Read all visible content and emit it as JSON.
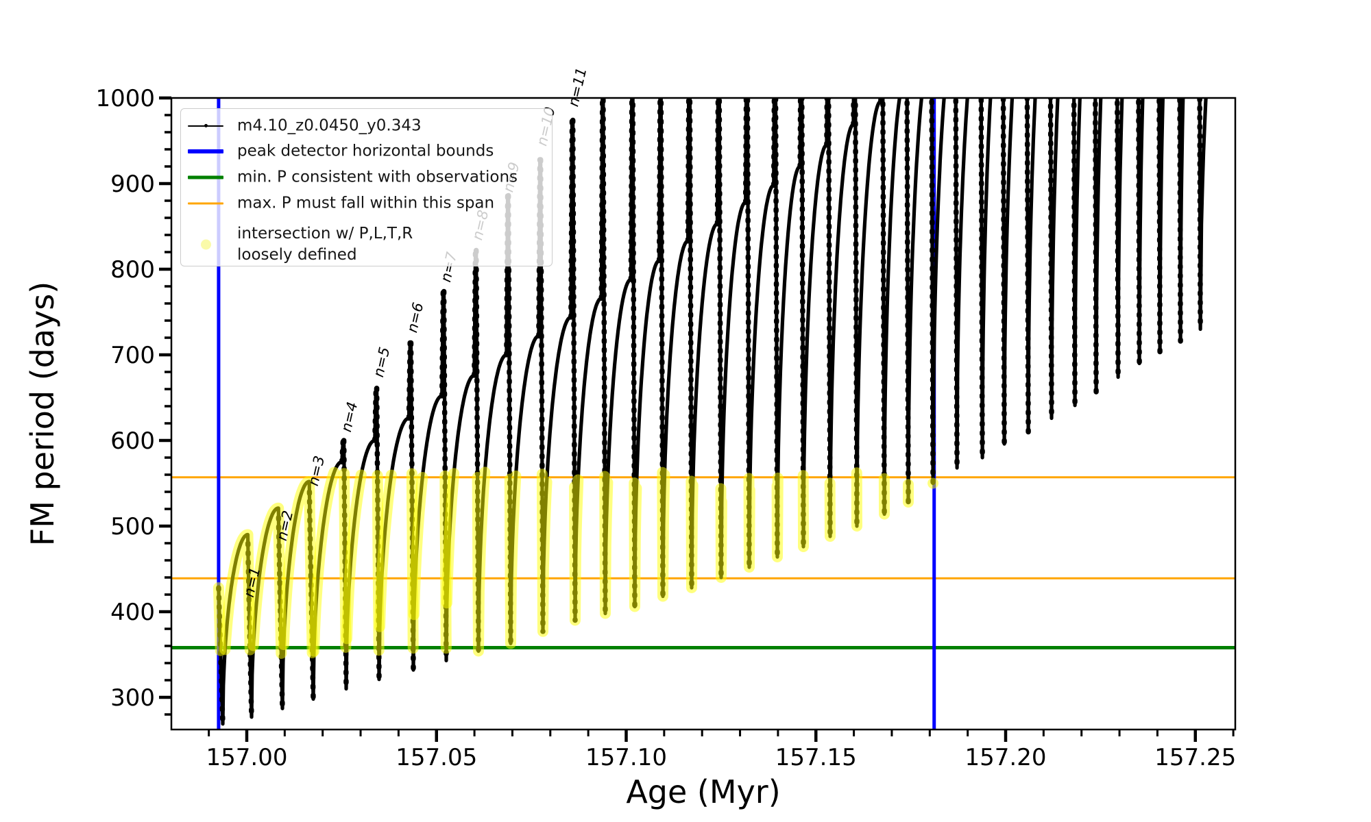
{
  "chart_data": {
    "type": "line",
    "title": "",
    "xlabel": "Age (Myr)",
    "ylabel": "FM period (days)",
    "xlim": [
      156.98013,
      157.26052
    ],
    "ylim": [
      262.4,
      1000
    ],
    "xticks": [
      157.0,
      157.05,
      157.1,
      157.15,
      157.2,
      157.25
    ],
    "x_tick_labels": [
      "157.00",
      "157.05",
      "157.10",
      "157.15",
      "157.20",
      "157.25"
    ],
    "x_minor_step": 0.01,
    "yticks": [
      300,
      400,
      500,
      600,
      700,
      800,
      900,
      1000
    ],
    "y_tick_labels": [
      "300",
      "400",
      "500",
      "600",
      "700",
      "800",
      "900",
      "1000"
    ],
    "y_minor_step": 20,
    "grid": false,
    "series_label": "m4.10_z0.0450_y0.343",
    "series_color": "#000000",
    "curve": {
      "description": "Scalloped FM-period track: each cycle starts at a dip, arches up to a rounded peak near the end of the cycle, then a near-vertical spike rises to spike_peak_P and falls to the next dip. Values above 1000 are clipped by the axes.",
      "start_point": {
        "age": 156.99258,
        "P": 428
      },
      "dip_ages": [
        156.99368,
        157.00126,
        157.0094,
        157.01753,
        157.0262,
        157.03487,
        157.0439,
        157.05257,
        157.06107,
        157.06956,
        157.07805,
        157.08654,
        157.09449,
        157.10226,
        157.10967,
        157.11726,
        157.12503,
        157.13243,
        157.13984,
        157.14671,
        157.15375,
        157.1608,
        157.16803,
        157.17435,
        157.18086,
        157.18718,
        157.19387,
        157.19965,
        157.20597,
        157.21211,
        157.21826,
        157.22386,
        157.22964,
        157.23524,
        157.24066,
        157.24608,
        157.25132
      ],
      "dip_P": [
        269,
        277,
        287,
        298,
        310,
        321,
        332,
        343,
        354,
        363,
        377,
        390,
        398,
        406,
        418,
        428,
        440,
        452,
        464,
        476,
        488,
        500,
        514,
        528,
        550,
        568,
        580,
        596,
        610,
        626,
        641,
        656,
        674,
        690,
        703,
        716,
        730
      ],
      "arch_peak_P": [
        490,
        521,
        552,
        575,
        600,
        626,
        652,
        676,
        700,
        722,
        744,
        766,
        788,
        810,
        833,
        853,
        878,
        898,
        920,
        945,
        969,
        996,
        1022,
        1046,
        1070,
        1090,
        1110,
        1130,
        1150,
        1170,
        1190,
        1210,
        1230,
        1250,
        1270,
        1290
      ],
      "spike_peak_P": [
        420,
        470,
        540,
        600,
        661,
        714,
        774,
        822,
        886,
        928,
        974,
        998,
        1025,
        1038,
        1050,
        1062,
        1074,
        1086,
        1098,
        1110,
        1122,
        1134,
        1146,
        1158,
        1170,
        1182,
        1194,
        1206,
        1218,
        1230,
        1242,
        1254,
        1266,
        1278,
        1290,
        1302
      ],
      "end_point": {
        "age": 157.2625,
        "P": 1310
      }
    },
    "vlines": {
      "label": "peak detector horizontal bounds",
      "color": "#0000ff",
      "ages": [
        156.99258,
        157.18116
      ]
    },
    "hline_min": {
      "label": "min. P consistent with observations",
      "color": "#008000",
      "P": 358
    },
    "hlines_span": {
      "label": "max. P must fall within this span",
      "color": "#ffa500",
      "P": [
        439,
        557
      ]
    },
    "highlight": {
      "label": "intersection w/ P,L,T,R loosely defined",
      "color": "#ffff00",
      "P_range": [
        358,
        557
      ],
      "age_range": [
        156.99258,
        157.18116
      ]
    },
    "annotations": [
      {
        "label": "n=1",
        "age": 157.0017,
        "P": 416,
        "color": "#000000"
      },
      {
        "label": "n=2",
        "age": 157.01037,
        "P": 482,
        "color": "#000000"
      },
      {
        "label": "n=3",
        "age": 157.01869,
        "P": 546,
        "color": "#000000"
      },
      {
        "label": "n=4",
        "age": 157.02737,
        "P": 609,
        "color": "#000000"
      },
      {
        "label": "n=5",
        "age": 157.03587,
        "P": 673,
        "color": "#000000"
      },
      {
        "label": "n=6",
        "age": 157.04473,
        "P": 725,
        "color": "#000000"
      },
      {
        "label": "n=7",
        "age": 157.05359,
        "P": 784,
        "color": "#000000"
      },
      {
        "label": "n=8",
        "age": 157.0619,
        "P": 833,
        "color": "#000000"
      },
      {
        "label": "n=9",
        "age": 157.07004,
        "P": 889,
        "color": "#000000"
      },
      {
        "label": "n=10",
        "age": 157.0789,
        "P": 943,
        "color": "#000000"
      },
      {
        "label": "n=11",
        "age": 157.08721,
        "P": 989,
        "color": "#000000"
      }
    ]
  },
  "legend": {
    "items": [
      {
        "glyph": "line-marker",
        "color": "#000000",
        "thickness": 2,
        "label": "m4.10_z0.0450_y0.343"
      },
      {
        "glyph": "line",
        "color": "#0000ff",
        "thickness": 6,
        "label": "peak detector horizontal bounds"
      },
      {
        "glyph": "line",
        "color": "#008000",
        "thickness": 5,
        "label": "min. P consistent with observations"
      },
      {
        "glyph": "line",
        "color": "#ffa500",
        "thickness": 3,
        "label": "max. P must fall within this span"
      },
      {
        "glyph": "circle",
        "color": "rgba(250,250,160,0.9)",
        "thickness": 0,
        "label": "intersection w/ P,L,T,R\nloosely defined"
      }
    ]
  }
}
